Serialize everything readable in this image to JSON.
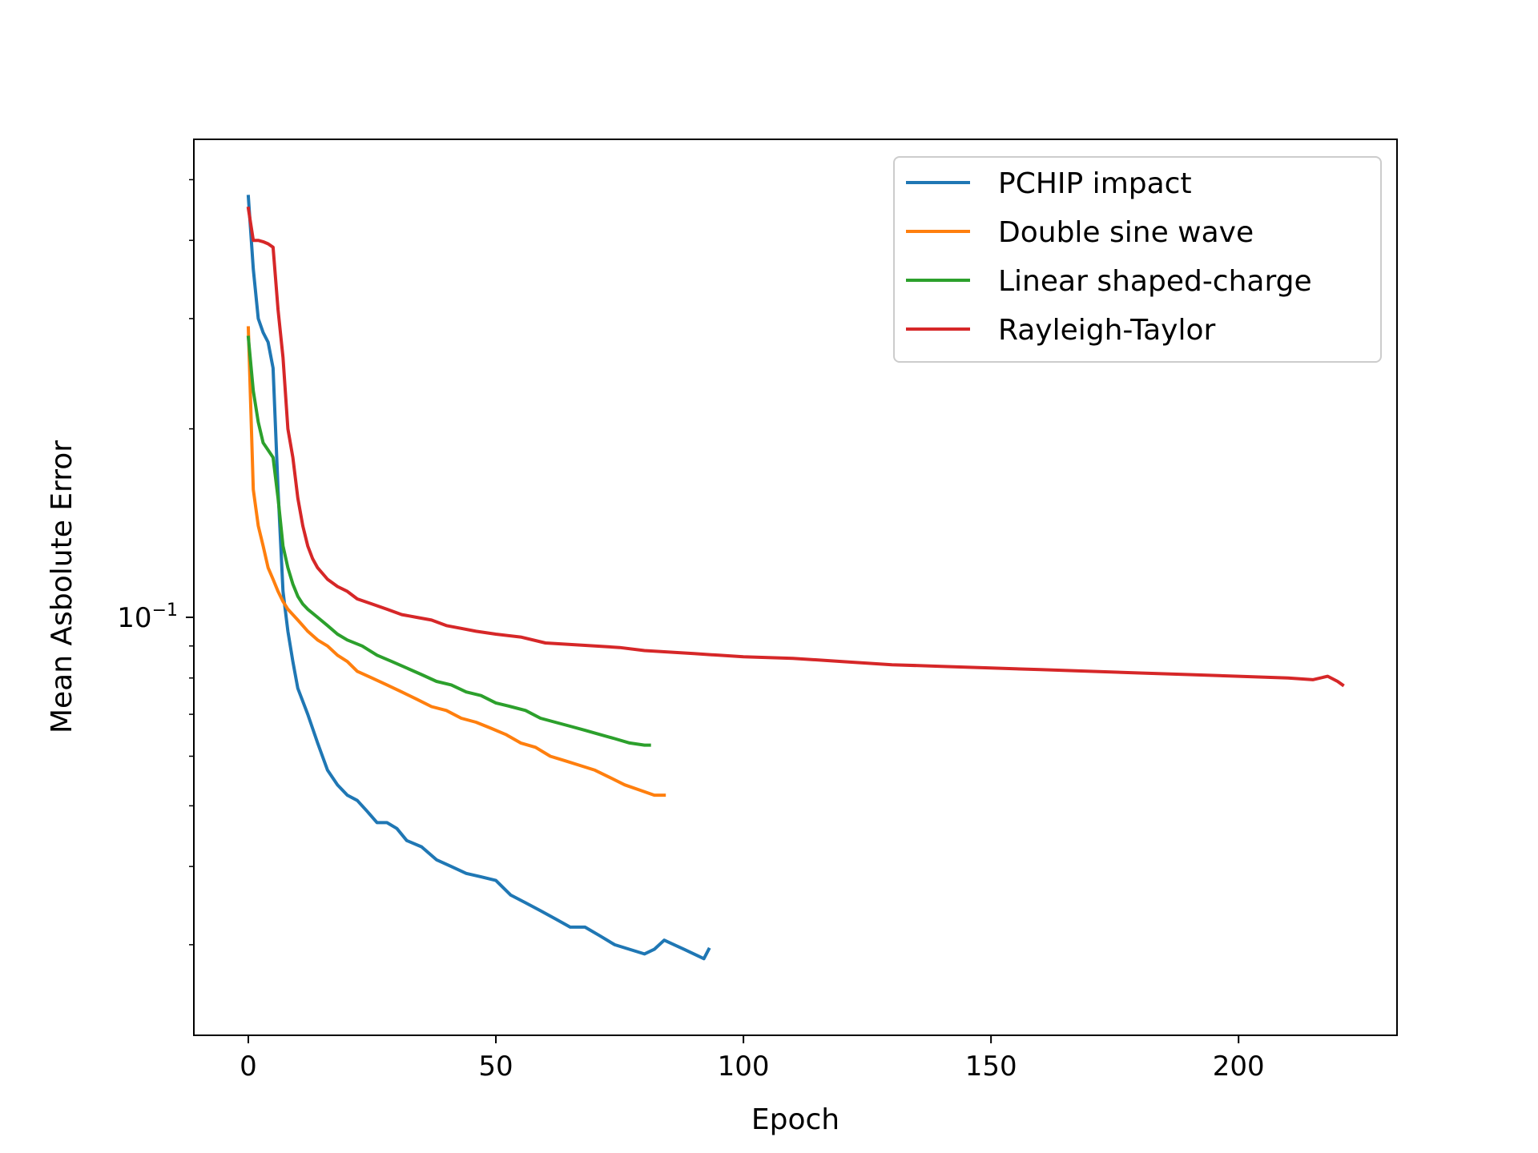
{
  "chart_data": {
    "type": "line",
    "title": "",
    "xlabel": "Epoch",
    "ylabel": "Mean Asbolute Error",
    "yscale": "log",
    "xlim": [
      -11,
      232
    ],
    "ylim": [
      0.0215,
      0.58
    ],
    "x_ticks": [
      0,
      50,
      100,
      150,
      200
    ],
    "x_tick_labels": [
      "0",
      "50",
      "100",
      "150",
      "200"
    ],
    "y_major_tick_base": "10",
    "y_major_tick_exponent": "−1",
    "y_major_tick_value": 0.1,
    "legend_position": "top-right",
    "series": [
      {
        "name": "PCHIP impact",
        "color": "#1f77b4",
        "x": [
          0,
          1,
          2,
          3,
          4,
          5,
          6,
          7,
          8,
          9,
          10,
          12,
          14,
          16,
          18,
          20,
          22,
          24,
          26,
          28,
          30,
          32,
          35,
          38,
          41,
          44,
          47,
          50,
          53,
          56,
          59,
          62,
          65,
          68,
          71,
          74,
          77,
          80,
          82,
          84,
          86,
          88,
          90,
          92,
          93
        ],
        "y": [
          0.47,
          0.36,
          0.3,
          0.285,
          0.275,
          0.25,
          0.16,
          0.11,
          0.095,
          0.085,
          0.077,
          0.07,
          0.063,
          0.057,
          0.054,
          0.052,
          0.051,
          0.049,
          0.047,
          0.047,
          0.046,
          0.044,
          0.043,
          0.041,
          0.04,
          0.039,
          0.0385,
          0.038,
          0.036,
          0.035,
          0.034,
          0.033,
          0.032,
          0.032,
          0.031,
          0.03,
          0.0295,
          0.029,
          0.0295,
          0.0305,
          0.03,
          0.0295,
          0.029,
          0.0285,
          0.0295
        ]
      },
      {
        "name": "Double sine wave",
        "color": "#ff7f0e",
        "x": [
          0,
          1,
          2,
          3,
          4,
          5,
          6,
          7,
          8,
          10,
          12,
          14,
          16,
          18,
          20,
          22,
          25,
          28,
          31,
          34,
          37,
          40,
          43,
          46,
          49,
          52,
          55,
          58,
          61,
          64,
          67,
          70,
          73,
          76,
          79,
          82,
          84
        ],
        "y": [
          0.29,
          0.16,
          0.14,
          0.13,
          0.12,
          0.115,
          0.11,
          0.106,
          0.103,
          0.099,
          0.095,
          0.092,
          0.09,
          0.087,
          0.085,
          0.082,
          0.08,
          0.078,
          0.076,
          0.074,
          0.072,
          0.071,
          0.069,
          0.068,
          0.0665,
          0.065,
          0.063,
          0.062,
          0.06,
          0.059,
          0.058,
          0.057,
          0.0555,
          0.054,
          0.053,
          0.052,
          0.052
        ]
      },
      {
        "name": "Linear shaped-charge",
        "color": "#2ca02c",
        "x": [
          0,
          1,
          2,
          3,
          4,
          5,
          6,
          7,
          8,
          9,
          10,
          11,
          12,
          14,
          16,
          18,
          20,
          23,
          26,
          29,
          32,
          35,
          38,
          41,
          44,
          47,
          50,
          53,
          56,
          59,
          62,
          65,
          68,
          71,
          74,
          77,
          80,
          81
        ],
        "y": [
          0.28,
          0.23,
          0.205,
          0.19,
          0.185,
          0.18,
          0.155,
          0.13,
          0.12,
          0.113,
          0.108,
          0.105,
          0.103,
          0.1,
          0.097,
          0.094,
          0.092,
          0.09,
          0.087,
          0.085,
          0.083,
          0.081,
          0.079,
          0.078,
          0.076,
          0.075,
          0.073,
          0.072,
          0.071,
          0.069,
          0.068,
          0.067,
          0.066,
          0.065,
          0.064,
          0.063,
          0.0625,
          0.0625
        ]
      },
      {
        "name": "Rayleigh-Taylor",
        "color": "#d62728",
        "x": [
          0,
          1,
          2,
          3,
          4,
          5,
          6,
          7,
          8,
          9,
          10,
          11,
          12,
          13,
          14,
          16,
          18,
          20,
          22,
          25,
          28,
          31,
          34,
          37,
          40,
          43,
          46,
          50,
          55,
          60,
          65,
          70,
          75,
          80,
          85,
          90,
          95,
          100,
          110,
          120,
          130,
          140,
          150,
          160,
          170,
          180,
          190,
          200,
          210,
          215,
          218,
          220,
          221
        ],
        "y": [
          0.45,
          0.4,
          0.4,
          0.398,
          0.395,
          0.39,
          0.31,
          0.26,
          0.2,
          0.18,
          0.155,
          0.14,
          0.13,
          0.124,
          0.12,
          0.115,
          0.112,
          0.11,
          0.107,
          0.105,
          0.103,
          0.101,
          0.1,
          0.099,
          0.097,
          0.096,
          0.095,
          0.094,
          0.093,
          0.091,
          0.0905,
          0.09,
          0.0895,
          0.0885,
          0.088,
          0.0875,
          0.087,
          0.0865,
          0.086,
          0.085,
          0.084,
          0.0835,
          0.083,
          0.0825,
          0.082,
          0.0815,
          0.081,
          0.0805,
          0.08,
          0.0795,
          0.0805,
          0.079,
          0.078
        ]
      }
    ]
  }
}
